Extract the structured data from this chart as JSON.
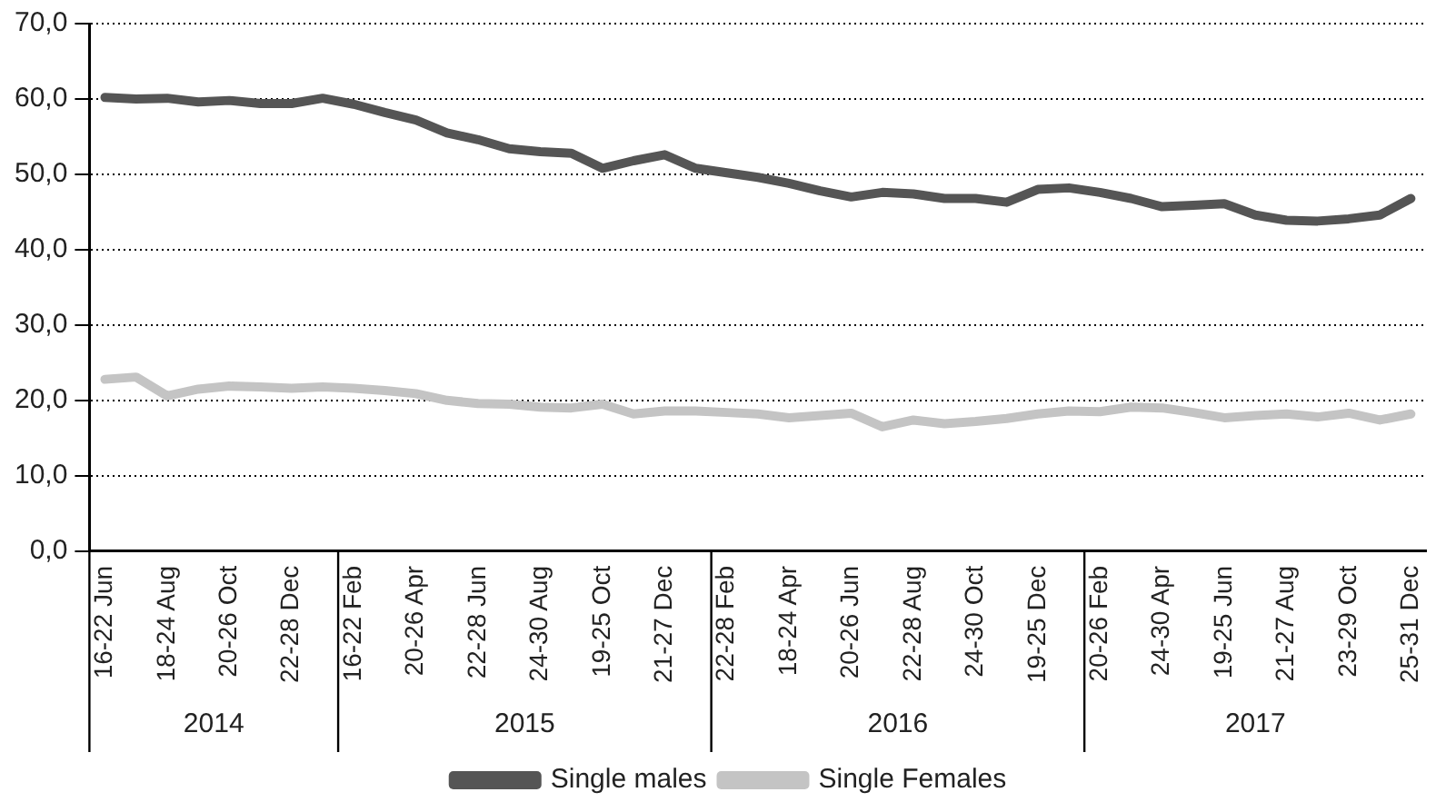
{
  "chart_data": {
    "type": "line",
    "categories": [
      "16-22 Jun",
      null,
      "18-24 Aug",
      null,
      "20-26 Oct",
      null,
      "22-28 Dec",
      null,
      "16-22 Feb",
      null,
      "20-26 Apr",
      null,
      "22-28 Jun",
      null,
      "24-30 Aug",
      null,
      "19-25 Oct",
      null,
      "21-27 Dec",
      null,
      "22-28 Feb",
      null,
      "18-24 Apr",
      null,
      "20-26 Jun",
      null,
      "22-28 Aug",
      null,
      "24-30 Oct",
      null,
      "19-25 Dec",
      null,
      "20-26 Feb",
      null,
      "24-30 Apr",
      null,
      "19-25 Jun",
      null,
      "21-27 Aug",
      null,
      "23-29 Oct",
      null,
      "25-31 Dec"
    ],
    "series": [
      {
        "name": "Single males",
        "color": "#555555",
        "values": [
          60.2,
          60.0,
          60.1,
          59.6,
          59.8,
          59.4,
          59.4,
          60.1,
          59.3,
          58.2,
          57.2,
          55.5,
          54.6,
          53.4,
          53.0,
          52.8,
          50.8,
          51.8,
          52.6,
          50.8,
          50.2,
          49.6,
          48.8,
          47.8,
          47.0,
          47.6,
          47.4,
          46.8,
          46.8,
          46.3,
          48.0,
          48.2,
          47.6,
          46.8,
          45.7,
          45.9,
          46.1,
          44.6,
          43.9,
          43.8,
          44.1,
          44.6,
          46.8
        ]
      },
      {
        "name": "Single Females",
        "color": "#c4c4c4",
        "values": [
          22.8,
          23.1,
          20.6,
          21.5,
          21.9,
          21.8,
          21.6,
          21.8,
          21.6,
          21.3,
          20.9,
          20.0,
          19.6,
          19.5,
          19.1,
          19.0,
          19.5,
          18.2,
          18.6,
          18.6,
          18.4,
          18.2,
          17.7,
          18.0,
          18.3,
          16.5,
          17.4,
          16.9,
          17.2,
          17.6,
          18.2,
          18.6,
          18.5,
          19.1,
          19.0,
          18.4,
          17.7,
          18.0,
          18.2,
          17.8,
          18.3,
          17.4,
          18.2
        ]
      }
    ],
    "ylim": [
      0,
      70
    ],
    "yticks": [
      {
        "value": 0,
        "label": "0,0"
      },
      {
        "value": 10,
        "label": "10,0"
      },
      {
        "value": 20,
        "label": "20,0"
      },
      {
        "value": 30,
        "label": "30,0"
      },
      {
        "value": 40,
        "label": "40,0"
      },
      {
        "value": 50,
        "label": "50,0"
      },
      {
        "value": 60,
        "label": "60,0"
      },
      {
        "value": 70,
        "label": "70,0"
      }
    ],
    "grid": "y",
    "legend": "bottom",
    "marker": "none",
    "line_style": "solid",
    "annotations": [
      "2014",
      "2015",
      "2016",
      "2017"
    ]
  }
}
